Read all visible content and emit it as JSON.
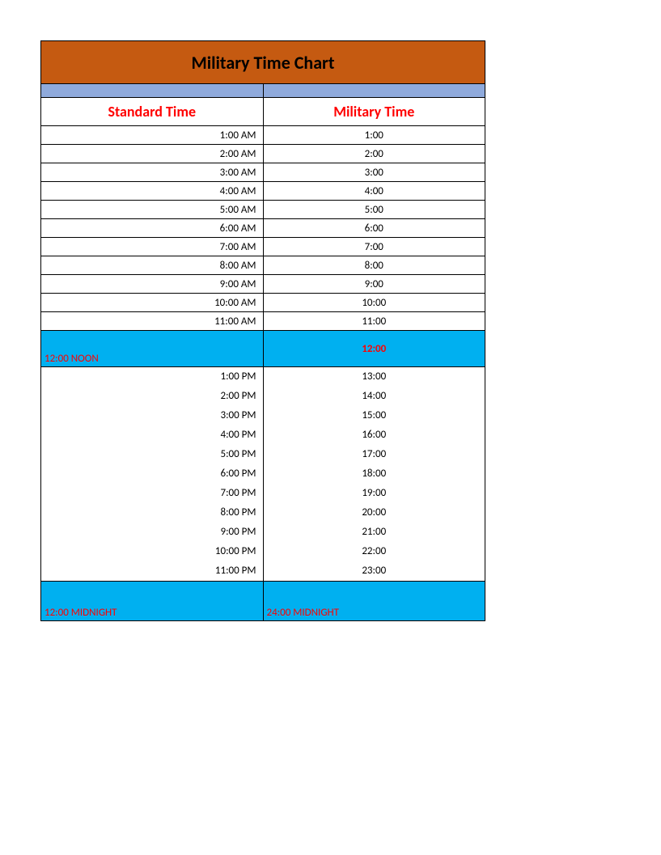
{
  "title": "Military Time Chart",
  "headers": {
    "standard": "Standard Time",
    "military": "Military Time"
  },
  "colors": {
    "title_bg": "#c55a11",
    "band_bg": "#8faadc",
    "header_text": "#ff0000",
    "highlight_bg": "#00b0f0",
    "highlight_text": "#ff0000",
    "cell_text": "#000000",
    "border": "#000000",
    "page_bg": "#ffffff"
  },
  "font": {
    "family": "Calibri, Arial, sans-serif",
    "title_size": 22,
    "header_size": 18,
    "cell_size": 13
  },
  "am_rows": [
    {
      "std": "1:00 AM",
      "mil": "1:00"
    },
    {
      "std": "2:00 AM",
      "mil": "2:00"
    },
    {
      "std": "3:00 AM",
      "mil": "3:00"
    },
    {
      "std": "4:00 AM",
      "mil": "4:00"
    },
    {
      "std": "5:00 AM",
      "mil": "5:00"
    },
    {
      "std": "6:00 AM",
      "mil": "6:00"
    },
    {
      "std": "7:00 AM",
      "mil": "7:00"
    },
    {
      "std": "8:00 AM",
      "mil": "8:00"
    },
    {
      "std": "9:00 AM",
      "mil": "9:00"
    },
    {
      "std": "10:00 AM",
      "mil": "10:00"
    },
    {
      "std": "11:00 AM",
      "mil": "11:00"
    }
  ],
  "noon": {
    "std": "12:00 NOON",
    "mil": "12:00"
  },
  "pm_rows": [
    {
      "std": "1:00 PM",
      "mil": "13:00"
    },
    {
      "std": "2:00 PM",
      "mil": "14:00"
    },
    {
      "std": "3:00 PM",
      "mil": "15:00"
    },
    {
      "std": "4:00 PM",
      "mil": "16:00"
    },
    {
      "std": "5:00 PM",
      "mil": "17:00"
    },
    {
      "std": "6:00 PM",
      "mil": "18:00"
    },
    {
      "std": "7:00 PM",
      "mil": "19:00"
    },
    {
      "std": "8:00 PM",
      "mil": "20:00"
    },
    {
      "std": "9:00 PM",
      "mil": "21:00"
    },
    {
      "std": "10:00 PM",
      "mil": "22:00"
    },
    {
      "std": "11:00 PM",
      "mil": "23:00"
    }
  ],
  "midnight": {
    "std": "12:00 MIDNIGHT",
    "mil": "24:00 MIDNIGHT"
  }
}
